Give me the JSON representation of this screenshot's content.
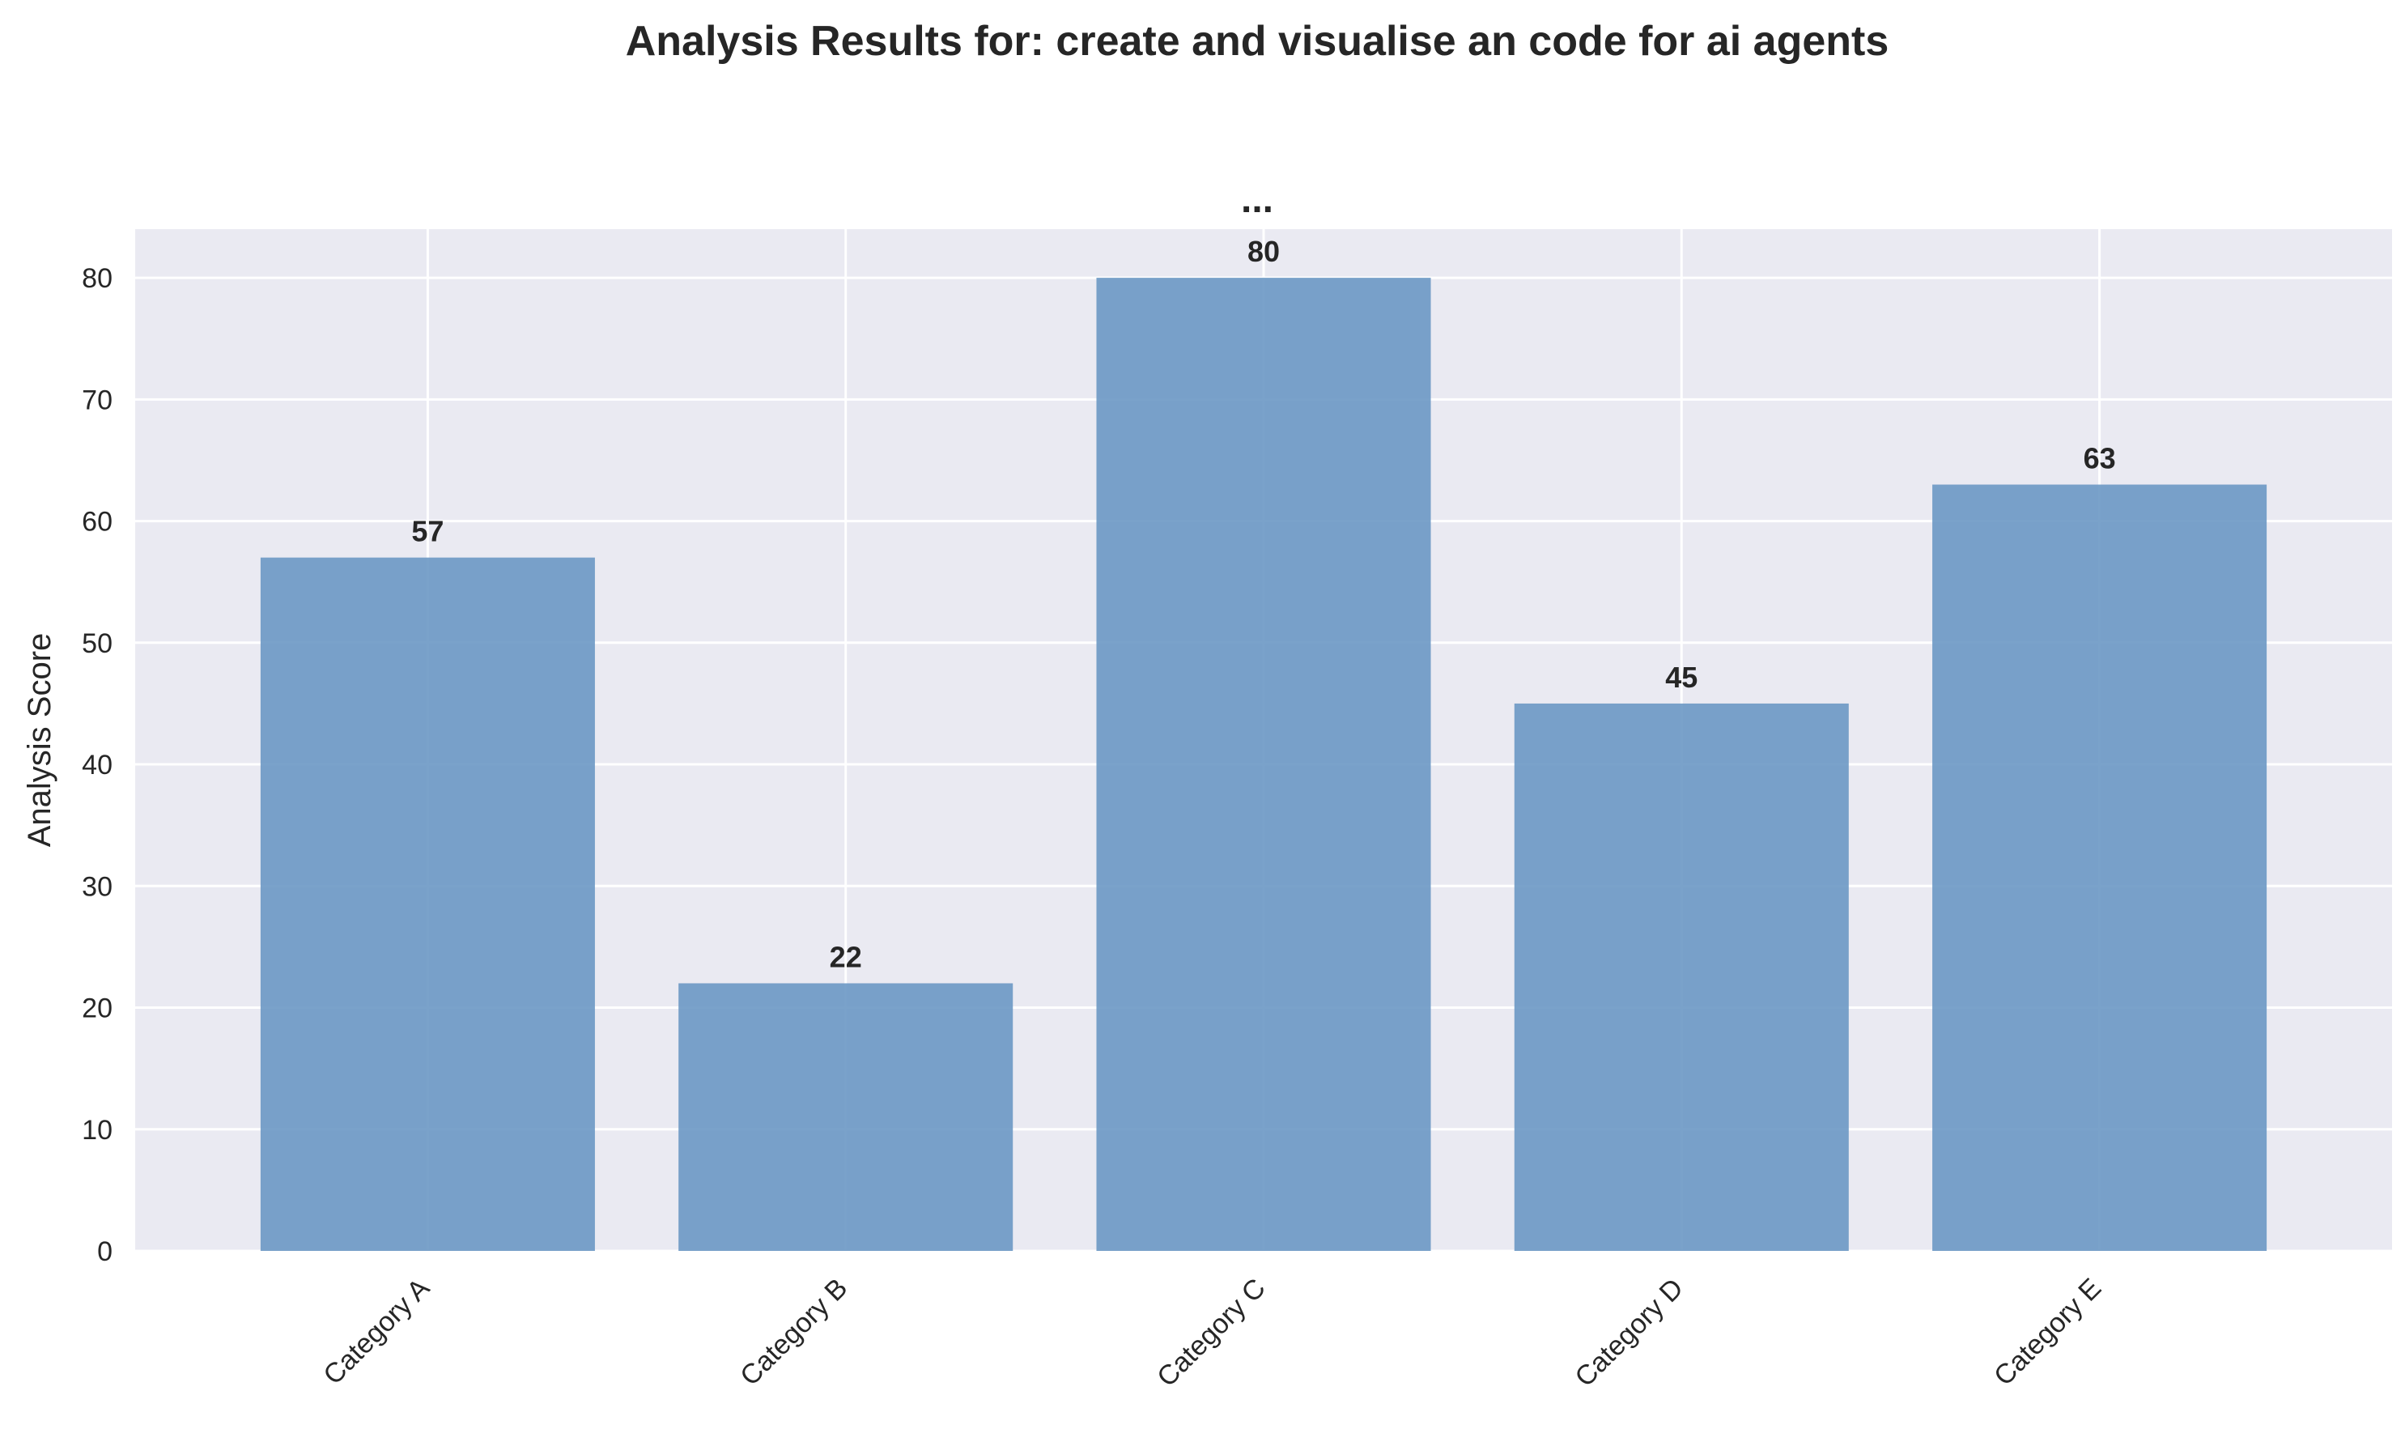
{
  "figure": {
    "title": "Analysis Results for: create and visualise an code for ai agents"
  },
  "colors": {
    "plot_background": "#eaeaf2",
    "grid": "#ffffff",
    "bar": "#6b98c4",
    "text": "#262626"
  },
  "chart_data": {
    "type": "bar",
    "title": "...",
    "xlabel": "",
    "ylabel": "Analysis Score",
    "categories": [
      "Category A",
      "Category B",
      "Category C",
      "Category D",
      "Category E"
    ],
    "values": [
      57,
      22,
      80,
      45,
      63
    ],
    "data_labels": [
      "57",
      "22",
      "80",
      "45",
      "63"
    ],
    "ylim": [
      0,
      84
    ],
    "yticks": [
      0,
      10,
      20,
      30,
      40,
      50,
      60,
      70,
      80
    ],
    "ytick_labels": [
      "0",
      "10",
      "20",
      "30",
      "40",
      "50",
      "60",
      "70",
      "80"
    ],
    "grid": true,
    "legend": "none"
  }
}
